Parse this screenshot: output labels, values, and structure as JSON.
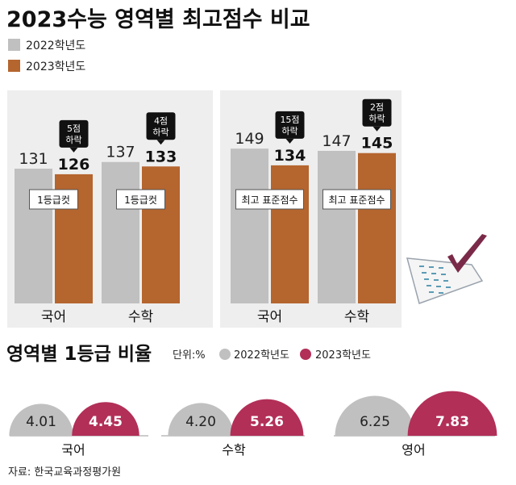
{
  "title": "2023수능 영역별 최고점수 비교",
  "legend_top": [
    {
      "label": "2022학년도",
      "color": "#c0c0c0"
    },
    {
      "label": "2023학년도",
      "color": "#b5652e"
    }
  ],
  "section2_title": "영역별 1등급 비율",
  "section2_unit": "단위:%",
  "legend_bottom": [
    {
      "label": "2022학년도",
      "color": "#c0c0c0"
    },
    {
      "label": "2023학년도",
      "color": "#b22f58"
    }
  ],
  "source": "자료: 한국교육과정평가원",
  "colors": {
    "gray": "#c0c0c0",
    "orange": "#b5652e",
    "crimson": "#b22f58",
    "dark": "#111111"
  },
  "chart_data": [
    {
      "type": "bar",
      "title": "1등급컷",
      "categories": [
        "국어",
        "수학"
      ],
      "series": [
        {
          "name": "2022학년도",
          "values": [
            131,
            137
          ]
        },
        {
          "name": "2023학년도",
          "values": [
            126,
            133
          ]
        }
      ],
      "annotations": [
        "5점\n하락",
        "4점\n하락"
      ]
    },
    {
      "type": "bar",
      "title": "최고 표준점수",
      "categories": [
        "국어",
        "수학"
      ],
      "series": [
        {
          "name": "2022학년도",
          "values": [
            149,
            147
          ]
        },
        {
          "name": "2023학년도",
          "values": [
            134,
            145
          ]
        }
      ],
      "annotations": [
        "15점\n하락",
        "2점\n하락"
      ]
    },
    {
      "type": "bar",
      "title": "영역별 1등급 비율",
      "categories": [
        "국어",
        "수학",
        "영어"
      ],
      "series": [
        {
          "name": "2022학년도",
          "values": [
            4.01,
            4.2,
            6.25
          ]
        },
        {
          "name": "2023학년도",
          "values": [
            4.45,
            5.26,
            7.83
          ]
        }
      ]
    }
  ]
}
